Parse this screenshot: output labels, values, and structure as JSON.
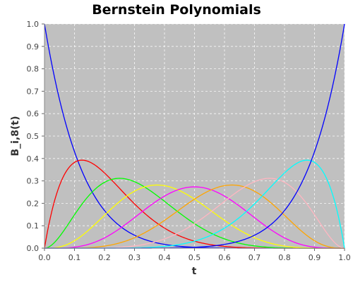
{
  "chart_data": {
    "type": "line",
    "title": "Bernstein Polynomials",
    "xlabel": "t",
    "ylabel": "B_i,8(t)",
    "xlim": [
      0.0,
      1.0
    ],
    "ylim": [
      0.0,
      1.0
    ],
    "x_ticks": [
      "0.0",
      "0.1",
      "0.2",
      "0.3",
      "0.4",
      "0.5",
      "0.6",
      "0.7",
      "0.8",
      "0.9",
      "1.0"
    ],
    "y_ticks": [
      "0.0",
      "0.1",
      "0.2",
      "0.3",
      "0.4",
      "0.5",
      "0.6",
      "0.7",
      "0.8",
      "0.9",
      "1.0"
    ],
    "grid": true,
    "legend": "none",
    "plot_background": "#c0c0c0",
    "x": [
      0.0,
      0.05,
      0.1,
      0.125,
      0.15,
      0.2,
      0.25,
      0.3,
      0.35,
      0.375,
      0.4,
      0.45,
      0.5,
      0.55,
      0.6,
      0.625,
      0.65,
      0.7,
      0.75,
      0.8,
      0.85,
      0.875,
      0.9,
      0.95,
      1.0
    ],
    "series": [
      {
        "color": "#0000ff",
        "values": [
          1.0,
          0.663,
          0.43,
          0.344,
          0.272,
          0.168,
          0.1,
          0.058,
          0.032,
          0.024,
          0.017,
          0.008,
          0.004,
          0.0017,
          0.0007,
          0.0004,
          0.0002,
          0.0,
          0.0,
          0.0,
          0.0,
          0.0,
          0.0,
          0.0,
          0.0
        ]
      },
      {
        "color": "#ff0000",
        "values": [
          0.0,
          0.279,
          0.383,
          0.393,
          0.385,
          0.336,
          0.267,
          0.198,
          0.137,
          0.112,
          0.09,
          0.055,
          0.031,
          0.016,
          0.008,
          0.005,
          0.003,
          0.001,
          0.0,
          0.0,
          0.0,
          0.0,
          0.0,
          0.0,
          0.0
        ]
      },
      {
        "color": "#00ff00",
        "values": [
          0.0,
          0.051,
          0.149,
          0.197,
          0.238,
          0.294,
          0.311,
          0.296,
          0.259,
          0.236,
          0.209,
          0.157,
          0.109,
          0.07,
          0.041,
          0.03,
          0.022,
          0.01,
          0.004,
          0.001,
          0.0,
          0.0,
          0.0,
          0.0,
          0.0
        ]
      },
      {
        "color": "#ffff00",
        "values": [
          0.0,
          0.005,
          0.033,
          0.056,
          0.084,
          0.147,
          0.208,
          0.254,
          0.279,
          0.283,
          0.279,
          0.257,
          0.219,
          0.172,
          0.124,
          0.102,
          0.081,
          0.047,
          0.023,
          0.009,
          0.003,
          0.001,
          0.0,
          0.0,
          0.0
        ]
      },
      {
        "color": "#ff00ff",
        "values": [
          0.0,
          0.0004,
          0.005,
          0.01,
          0.018,
          0.046,
          0.087,
          0.136,
          0.188,
          0.212,
          0.232,
          0.263,
          0.273,
          0.263,
          0.232,
          0.212,
          0.188,
          0.136,
          0.087,
          0.046,
          0.018,
          0.01,
          0.005,
          0.0004,
          0.0
        ]
      },
      {
        "color": "#ffa500",
        "values": [
          0.0,
          0.0,
          0.0,
          0.001,
          0.003,
          0.009,
          0.023,
          0.047,
          0.081,
          0.102,
          0.124,
          0.172,
          0.219,
          0.257,
          0.279,
          0.283,
          0.279,
          0.254,
          0.208,
          0.147,
          0.084,
          0.056,
          0.033,
          0.005,
          0.0
        ]
      },
      {
        "color": "#ffb6c1",
        "values": [
          0.0,
          0.0,
          0.0,
          0.0,
          0.0,
          0.001,
          0.004,
          0.01,
          0.022,
          0.03,
          0.041,
          0.07,
          0.109,
          0.157,
          0.209,
          0.236,
          0.259,
          0.296,
          0.311,
          0.294,
          0.238,
          0.197,
          0.149,
          0.051,
          0.0
        ]
      },
      {
        "color": "#00ffff",
        "values": [
          0.0,
          0.0,
          0.0,
          0.0,
          0.0,
          0.0,
          0.0,
          0.001,
          0.003,
          0.005,
          0.008,
          0.016,
          0.031,
          0.055,
          0.09,
          0.112,
          0.137,
          0.198,
          0.267,
          0.336,
          0.385,
          0.393,
          0.383,
          0.279,
          0.0
        ]
      },
      {
        "color": "#0000ff",
        "values": [
          0.0,
          0.0,
          0.0,
          0.0,
          0.0,
          0.0,
          0.0,
          0.0,
          0.0,
          0.0,
          0.0007,
          0.0017,
          0.004,
          0.008,
          0.017,
          0.024,
          0.032,
          0.058,
          0.1,
          0.168,
          0.272,
          0.344,
          0.43,
          0.663,
          1.0
        ]
      }
    ]
  }
}
